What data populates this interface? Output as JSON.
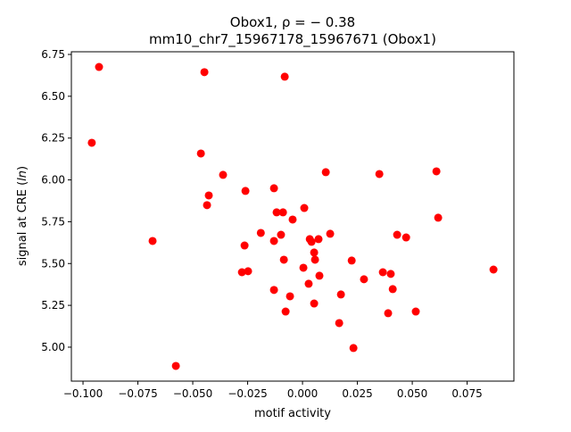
{
  "chart_data": {
    "type": "scatter",
    "title_line1_prefix": "Obox1, ",
    "title_line1_rho": "ρ = − 0.38",
    "title_line2": "mm10_chr7_15967178_15967671 (Obox1)",
    "xlabel": "motif activity",
    "ylabel_prefix": "signal at CRE (",
    "ylabel_italic": "ln",
    "ylabel_suffix": ")",
    "xlim": [
      -0.1053,
      0.0963
    ],
    "ylim": [
      4.797,
      6.766
    ],
    "xticks": [
      -0.1,
      -0.075,
      -0.05,
      -0.025,
      0.0,
      0.025,
      0.05,
      0.075
    ],
    "xtick_labels": [
      "−0.100",
      "−0.075",
      "−0.050",
      "−0.025",
      "0.000",
      "0.025",
      "0.050",
      "0.075"
    ],
    "yticks": [
      5.0,
      5.25,
      5.5,
      5.75,
      6.0,
      6.25,
      6.5,
      6.75
    ],
    "ytick_labels": [
      "5.00",
      "5.25",
      "5.50",
      "5.75",
      "6.00",
      "6.25",
      "6.50",
      "6.75"
    ],
    "grid": false,
    "marker_color": "#ff0000",
    "points": [
      [
        -0.0927,
        6.675
      ],
      [
        -0.096,
        6.222
      ],
      [
        -0.0447,
        6.644
      ],
      [
        -0.0081,
        6.617
      ],
      [
        -0.0463,
        6.158
      ],
      [
        -0.0362,
        6.03
      ],
      [
        -0.0427,
        5.907
      ],
      [
        -0.0435,
        5.849
      ],
      [
        -0.026,
        5.934
      ],
      [
        -0.013,
        5.95
      ],
      [
        -0.0118,
        5.806
      ],
      [
        -0.0089,
        5.806
      ],
      [
        -0.0045,
        5.763
      ],
      [
        0.0008,
        5.832
      ],
      [
        0.0106,
        6.046
      ],
      [
        0.035,
        6.035
      ],
      [
        0.061,
        6.051
      ],
      [
        0.0618,
        5.774
      ],
      [
        -0.0683,
        5.635
      ],
      [
        -0.019,
        5.683
      ],
      [
        -0.0098,
        5.672
      ],
      [
        -0.013,
        5.635
      ],
      [
        -0.0264,
        5.608
      ],
      [
        0.0033,
        5.646
      ],
      [
        0.0041,
        5.63
      ],
      [
        0.0073,
        5.646
      ],
      [
        0.0126,
        5.678
      ],
      [
        0.0431,
        5.672
      ],
      [
        0.0472,
        5.656
      ],
      [
        0.0053,
        5.566
      ],
      [
        0.0057,
        5.523
      ],
      [
        -0.0085,
        5.523
      ],
      [
        0.0224,
        5.518
      ],
      [
        -0.0276,
        5.448
      ],
      [
        -0.0248,
        5.454
      ],
      [
        0.0004,
        5.475
      ],
      [
        0.0366,
        5.448
      ],
      [
        0.0402,
        5.438
      ],
      [
        0.0077,
        5.427
      ],
      [
        0.028,
        5.406
      ],
      [
        0.0028,
        5.379
      ],
      [
        0.0411,
        5.347
      ],
      [
        -0.013,
        5.342
      ],
      [
        -0.0057,
        5.304
      ],
      [
        0.0175,
        5.315
      ],
      [
        0.0053,
        5.261
      ],
      [
        -0.0077,
        5.213
      ],
      [
        0.0167,
        5.144
      ],
      [
        0.039,
        5.203
      ],
      [
        0.0516,
        5.213
      ],
      [
        0.0232,
        4.995
      ],
      [
        -0.0577,
        4.888
      ],
      [
        0.087,
        5.464
      ]
    ]
  }
}
